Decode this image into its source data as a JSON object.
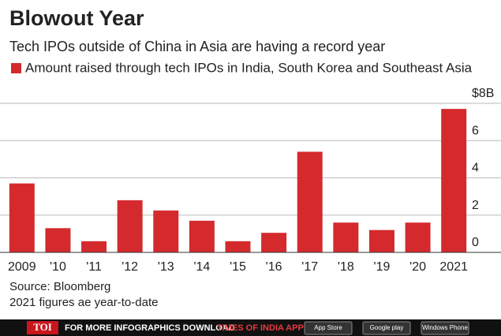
{
  "chart_data": {
    "type": "bar",
    "title": "Blowout Year",
    "subtitle": "Tech IPOs outside of China in Asia are having a record year",
    "categories": [
      "2009",
      "'10",
      "'11",
      "'12",
      "'13",
      "'14",
      "'15",
      "'16",
      "'17",
      "'18",
      "'19",
      "'20",
      "2021"
    ],
    "series": [
      {
        "name": "Amount raised through tech IPOs in India, South Korea and Southeast Asia",
        "color": "#d42a2e",
        "values": [
          3.7,
          1.3,
          0.6,
          2.8,
          2.25,
          1.7,
          0.6,
          1.05,
          5.4,
          1.6,
          1.2,
          1.6,
          7.7
        ]
      }
    ],
    "ylim": [
      0,
      8
    ],
    "yticks": [
      0,
      2,
      4,
      6,
      {
        "value": 8,
        "label": "$8B"
      }
    ],
    "grid": true,
    "source": "Source: Bloomberg",
    "note": "2021 figures ae year-to-date"
  },
  "footer": {
    "logo": "TOI",
    "text": "FOR MORE  INFOGRAPHICS DOWNLOAD",
    "app": "TIMES OF INDIA APP",
    "badges": [
      "App Store",
      "Google play",
      "Windows Phone"
    ]
  }
}
